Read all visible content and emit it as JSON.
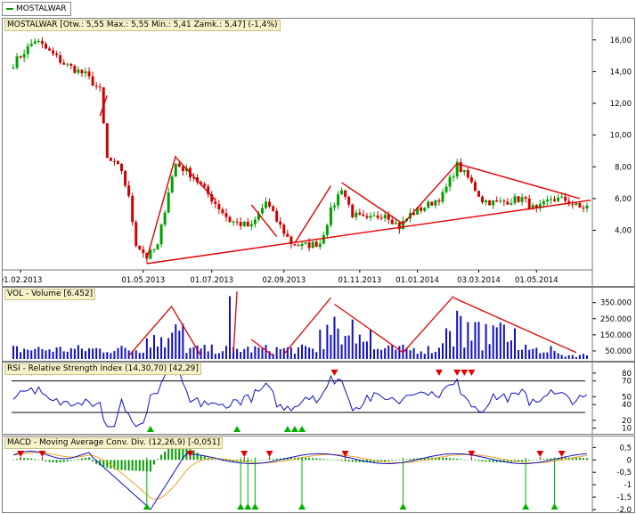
{
  "tab": {
    "label": "MOSTALWAR",
    "color": "#00a000"
  },
  "price_panel": {
    "label": "MOSTALWAR [Otw.: 5,55  Max.: 5,55  Min.: 5,41  Zamk.: 5,47] (-1,4%)",
    "y_ticks": [
      "16,00",
      "14,00",
      "12,00",
      "10,00",
      "8,00",
      "6,00",
      "4,00"
    ],
    "x_ticks": [
      "01.02.2013",
      "01.05.2013",
      "01.07.2013",
      "02.09.2013",
      "01.11.2013",
      "01.01.2014",
      "03.03.2014",
      "01.05.2014"
    ]
  },
  "volume_panel": {
    "label": "VOL - Volume [6.452]",
    "y_ticks": [
      "350.000",
      "250.000",
      "150.000",
      "50.000"
    ]
  },
  "rsi_panel": {
    "label": "RSI - Relative Strength Index (14,30,70) [42,29]",
    "y_ticks": [
      "80",
      "70",
      "50",
      "40",
      "20",
      "10"
    ]
  },
  "macd_panel": {
    "label": "MACD - Moving Average Conv. Div. (12,26,9) [-0,051]",
    "y_ticks": [
      "0,5",
      "0",
      "-0,5",
      "-1",
      "-1,5",
      "-2,0"
    ]
  },
  "colors": {
    "up_candle": "#00a000",
    "down_candle": "#d00000",
    "trendline": "#e00000",
    "rsi_line": "#1010c0",
    "macd_line": "#1010c0",
    "signal_line": "#f0a020",
    "volume_bar": "#1010c0"
  },
  "chart_data": [
    {
      "type": "candlestick",
      "title": "MOSTALWAR",
      "x": [
        "01.02.2013",
        "01.05.2013",
        "01.07.2013",
        "02.09.2013",
        "01.11.2013",
        "01.01.2014",
        "03.03.2014",
        "01.05.2014"
      ],
      "close_approx": [
        15.2,
        2.6,
        6.8,
        3.6,
        5.2,
        4.4,
        7.4,
        5.6
      ],
      "last": {
        "open": 5.55,
        "high": 5.55,
        "low": 5.41,
        "close": 5.47,
        "change_pct": -1.4
      },
      "ylim": [
        1.5,
        17
      ]
    },
    {
      "type": "bar",
      "title": "VOL - Volume",
      "last": 6452,
      "ylim": [
        0,
        420000
      ]
    },
    {
      "type": "line",
      "title": "RSI - Relative Strength Index",
      "params": [
        14,
        30,
        70
      ],
      "last": 42.29,
      "ylim": [
        5,
        90
      ]
    },
    {
      "type": "line",
      "title": "MACD - Moving Average Conv. Div.",
      "params": [
        12,
        26,
        9
      ],
      "last": -0.051,
      "ylim": [
        -2.0,
        0.8
      ]
    }
  ]
}
